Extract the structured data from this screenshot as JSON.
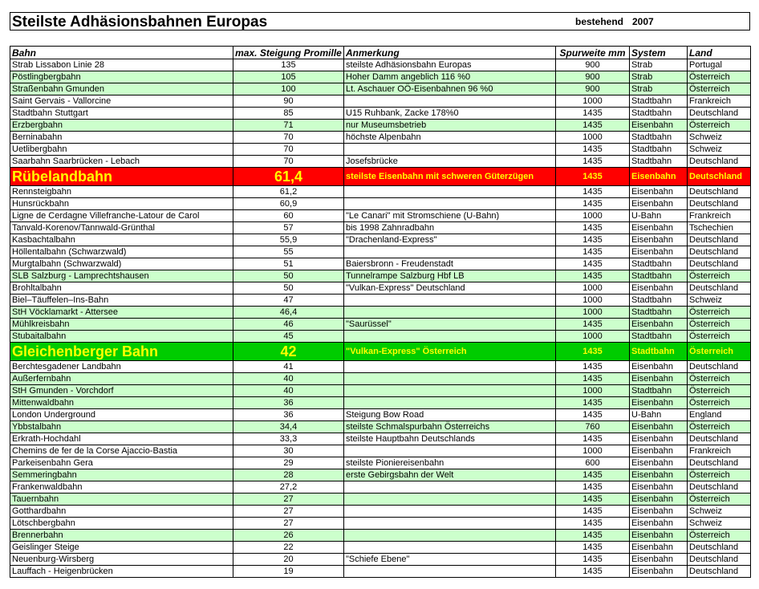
{
  "header": {
    "title": "Steilste Adhäsionsbahnen Europas",
    "status": "bestehend",
    "year": "2007"
  },
  "table": {
    "columns": [
      "Bahn",
      "max. Steigung Promille",
      "Anmerkung",
      "Spurweite mm",
      "System",
      "Land"
    ],
    "rows": [
      {
        "cells": [
          "Strab Lissabon Linie 28",
          "135",
          "steilste Adhäsionsbahn Europas",
          "900",
          "Strab",
          "Portugal"
        ]
      },
      {
        "cells": [
          "Pöstlingbergbahn",
          "105",
          "Hoher Damm angeblich 116 %0",
          "900",
          "Strab",
          "Österreich"
        ],
        "fill": "#ccffcc"
      },
      {
        "cells": [
          "Straßenbahn Gmunden",
          "100",
          "Lt. Aschauer OÖ-Eisenbahnen 96 %0",
          "900",
          "Strab",
          "Österreich"
        ],
        "fill": "#ccffcc"
      },
      {
        "cells": [
          "Saint Gervais - Vallorcine",
          "90",
          null,
          "1000",
          "Stadtbahn",
          "Frankreich"
        ]
      },
      {
        "cells": [
          "Stadtbahn Stuttgart",
          "85",
          "U15 Ruhbank, Zacke 178%0",
          "1435",
          "Stadtbahn",
          "Deutschland"
        ]
      },
      {
        "cells": [
          "Erzbergbahn",
          "71",
          "nur Museumsbetrieb",
          "1435",
          "Eisenbahn",
          "Österreich"
        ],
        "fill": "#ccffcc"
      },
      {
        "cells": [
          "Berninabahn",
          "70",
          "höchste Alpenbahn",
          "1000",
          "Stadtbahn",
          "Schweiz"
        ]
      },
      {
        "cells": [
          "Uetlibergbahn",
          "70",
          null,
          "1435",
          "Stadtbahn",
          "Schweiz"
        ]
      },
      {
        "cells": [
          "Saarbahn Saarbrücken - Lebach",
          "70",
          "Josefsbrücke",
          "1435",
          "Stadtbahn",
          "Deutschland"
        ]
      },
      {
        "cells": [
          "Rübelandbahn",
          "61,4",
          "steilste Eisenbahn mit schweren Güterzügen",
          "1435",
          "Eisenbahn",
          "Deutschland"
        ],
        "fill": "#ff0000",
        "text_color": "#ffff00"
      },
      {
        "cells": [
          "Rennsteigbahn",
          "61,2",
          null,
          "1435",
          "Eisenbahn",
          "Deutschland"
        ]
      },
      {
        "cells": [
          "Hunsrückbahn",
          "60,9",
          null,
          "1435",
          "Eisenbahn",
          "Deutschland"
        ]
      },
      {
        "cells": [
          "Ligne de Cerdagne Villefranche-Latour de Carol",
          "60",
          "\"Le Canari\" mit Stromschiene (U-Bahn)",
          "1000",
          "U-Bahn",
          "Frankreich"
        ]
      },
      {
        "cells": [
          "Tanvald-Korenov/Tannwald-Grünthal",
          "57",
          "bis 1998 Zahnradbahn",
          "1435",
          "Eisenbahn",
          "Tschechien"
        ]
      },
      {
        "cells": [
          "Kasbachtalbahn",
          "55,9",
          "\"Drachenland-Express\"",
          "1435",
          "Eisenbahn",
          "Deutschland"
        ]
      },
      {
        "cells": [
          "Höllentalbahn (Schwarzwald)",
          "55",
          null,
          "1435",
          "Eisenbahn",
          "Deutschland"
        ]
      },
      {
        "cells": [
          "Murgtalbahn (Schwarzwald)",
          "51",
          "Baiersbronn - Freudenstadt",
          "1435",
          "Stadtbahn",
          "Deutschland"
        ]
      },
      {
        "cells": [
          "SLB Salzburg - Lamprechtshausen",
          "50",
          "Tunnelrampe Salzburg Hbf LB",
          "1435",
          "Stadtbahn",
          "Österreich"
        ],
        "fill": "#ccffcc"
      },
      {
        "cells": [
          "Brohltalbahn",
          "50",
          "\"Vulkan-Express\" Deutschland",
          "1000",
          "Eisenbahn",
          "Deutschland"
        ]
      },
      {
        "cells": [
          "Biel–Täuffelen–Ins-Bahn",
          "47",
          null,
          "1000",
          "Stadtbahn",
          "Schweiz"
        ]
      },
      {
        "cells": [
          "StH Vöcklamarkt - Attersee",
          "46,4",
          null,
          "1000",
          "Stadtbahn",
          "Österreich"
        ],
        "fill": "#ccffcc"
      },
      {
        "cells": [
          "Mühlkreisbahn",
          "46",
          "\"Saurüssel\"",
          "1435",
          "Eisenbahn",
          "Österreich"
        ],
        "fill": "#ccffcc"
      },
      {
        "cells": [
          "Stubaitalbahn",
          "45",
          null,
          "1000",
          "Stadtbahn",
          "Österreich"
        ],
        "fill": "#ccffcc"
      },
      {
        "cells": [
          "Gleichenberger Bahn",
          "42",
          "\"Vulkan-Express\" Österreich",
          "1435",
          "Stadtbahn",
          "Österreich"
        ],
        "fill": "#00cc00",
        "text_color": "#ffff00"
      },
      {
        "cells": [
          "Berchtesgadener Landbahn",
          "41",
          null,
          "1435",
          "Eisenbahn",
          "Deutschland"
        ]
      },
      {
        "cells": [
          "Außerfernbahn",
          "40",
          null,
          "1435",
          "Eisenbahn",
          "Österreich"
        ],
        "fill": "#ccffcc"
      },
      {
        "cells": [
          "StH Gmunden - Vorchdorf",
          "40",
          null,
          "1000",
          "Stadtbahn",
          "Österreich"
        ],
        "fill": "#ccffcc"
      },
      {
        "cells": [
          "Mittenwaldbahn",
          "36",
          null,
          "1435",
          "Eisenbahn",
          "Österreich"
        ],
        "fill": "#ccffcc"
      },
      {
        "cells": [
          "London Underground",
          "36",
          "Steigung Bow Road",
          "1435",
          "U-Bahn",
          "England"
        ]
      },
      {
        "cells": [
          "Ybbstalbahn",
          "34,4",
          "steilste Schmalspurbahn Österreichs",
          "760",
          "Eisenbahn",
          "Österreich"
        ],
        "fill": "#ccffcc"
      },
      {
        "cells": [
          "Erkrath-Hochdahl",
          "33,3",
          "steilste Hauptbahn Deutschlands",
          "1435",
          "Eisenbahn",
          "Deutschland"
        ]
      },
      {
        "cells": [
          "Chemins de fer de la Corse Ajaccio-Bastia",
          "30",
          null,
          "1000",
          "Eisenbahn",
          "Frankreich"
        ]
      },
      {
        "cells": [
          "Parkeisenbahn Gera",
          "29",
          "steilste Pioniereisenbahn",
          "600",
          "Eisenbahn",
          "Deutschland"
        ]
      },
      {
        "cells": [
          "Semmeringbahn",
          "28",
          "erste Gebirgsbahn der Welt",
          "1435",
          "Eisenbahn",
          "Österreich"
        ],
        "fill": "#ccffcc"
      },
      {
        "cells": [
          "Frankenwaldbahn",
          "27,2",
          null,
          "1435",
          "Eisenbahn",
          "Deutschland"
        ]
      },
      {
        "cells": [
          "Tauernbahn",
          "27",
          null,
          "1435",
          "Eisenbahn",
          "Österreich"
        ],
        "fill": "#ccffcc"
      },
      {
        "cells": [
          "Gotthardbahn",
          "27",
          null,
          "1435",
          "Eisenbahn",
          "Schweiz"
        ]
      },
      {
        "cells": [
          "Lötschbergbahn",
          "27",
          null,
          "1435",
          "Eisenbahn",
          "Schweiz"
        ]
      },
      {
        "cells": [
          "Brennerbahn",
          "26",
          null,
          "1435",
          "Eisenbahn",
          "Österreich"
        ],
        "fill": "#ccffcc"
      },
      {
        "cells": [
          "Geislinger Steige",
          "22",
          null,
          "1435",
          "Eisenbahn",
          "Deutschland"
        ]
      },
      {
        "cells": [
          "Neuenburg-Wirsberg",
          "20",
          "\"Schiefe Ebene\"",
          "1435",
          "Eisenbahn",
          "Deutschland"
        ]
      },
      {
        "cells": [
          "Lauffach - Heigenbrücken",
          "19",
          null,
          "1435",
          "Eisenbahn",
          "Deutschland"
        ]
      }
    ]
  }
}
